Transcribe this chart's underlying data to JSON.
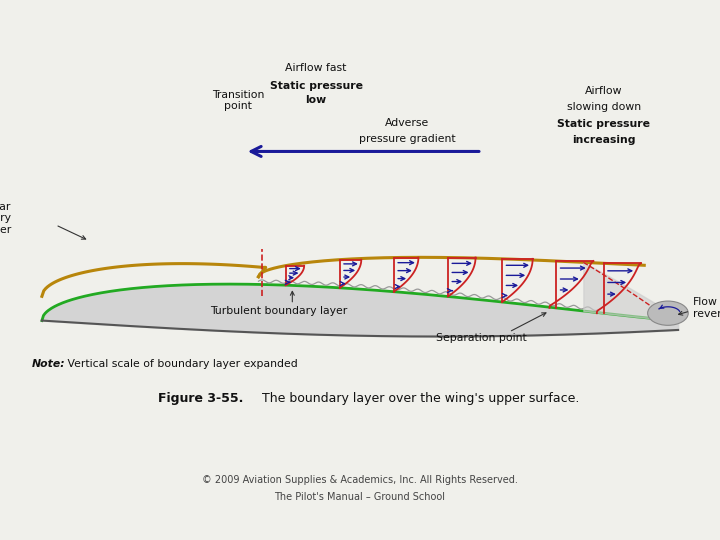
{
  "bg_color": "#f0f0eb",
  "box_bg": "#ffffff",
  "title_bold": "Figure 3-55.",
  "title_normal": " The boundary layer over the wing's upper surface.",
  "copyright_line1": "© 2009 Aviation Supplies & Academics, Inc. All Rights Reserved.",
  "copyright_line2": "The Pilot's Manual – Ground School",
  "wing_fill": "#d4d4d4",
  "green_line_color": "#22aa22",
  "laminar_layer_color": "#b8860b",
  "velocity_profile_color": "#cc2222",
  "arrow_color": "#1a1a99",
  "dashed_line_color": "#cc2222",
  "note_bold": "Note:",
  "note_text": " Vertical scale of boundary layer expanded",
  "labels": {
    "airflow_fast_line1": "Airflow fast",
    "airflow_fast_bold": "Static pressure",
    "airflow_fast_line3": "low",
    "transition_point": "Transition\npoint",
    "adverse_gradient_line1": "Adverse",
    "adverse_gradient_line2": "pressure gradient",
    "airflow_slowing_line1": "Airflow",
    "airflow_slowing_line2": "slowing down",
    "airflow_slowing_bold1": "Static pressure",
    "airflow_slowing_bold2": "increasing",
    "laminar_boundary": "Laminar\nboundary\nlayer",
    "turbulent_boundary": "Turbulent boundary layer",
    "separation_point": "Separation point",
    "flow_reversal": "Flow\nreversal"
  }
}
